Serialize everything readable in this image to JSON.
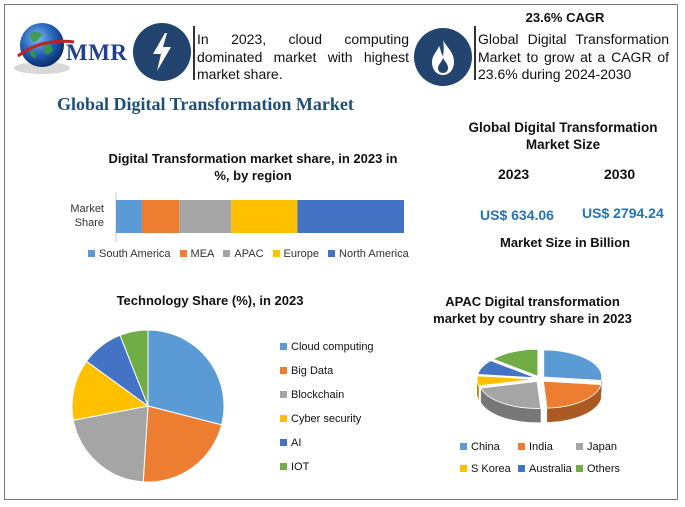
{
  "header": {
    "logo_text": "MMR",
    "intro_text": "In 2023, cloud computing dominated market with highest market share.",
    "cagr_title": "23.6% CAGR",
    "cagr_text": "Global Digital Transformation Market to grow at a CAGR of 23.6% during 2024-2030"
  },
  "main_title": "Global Digital Transformation Market",
  "market_size": {
    "title": "Global Digital Transformation Market Size",
    "year_1": "2023",
    "year_2": "2030",
    "value_1": "US$ 634.06",
    "value_2": "US$ 2794.24",
    "unit_label": "Market Size in Billion"
  },
  "colors": {
    "South America": "#5b9bd5",
    "MEA": "#ed7d31",
    "APAC": "#a5a5a5",
    "Europe": "#ffc000",
    "North America": "#4472c4",
    "Cloud computing": "#5b9bd5",
    "Big Data": "#ed7d31",
    "Blockchain": "#a5a5a5",
    "Cyber security": "#ffc000",
    "AI": "#4472c4",
    "IOT": "#70ad47",
    "China": "#5b9bd5",
    "India": "#ed7d31",
    "Japan": "#a5a5a5",
    "S Korea": "#ffc000",
    "Australia": "#4472c4",
    "Others": "#70ad47"
  },
  "chart_data": [
    {
      "type": "bar",
      "orientation": "horizontal-stacked",
      "title": "Digital Transformation market share, in 2023 in %, by region",
      "categories": [
        "Market Share"
      ],
      "category_label": "Market Share",
      "series": [
        {
          "name": "South America",
          "values": [
            9
          ]
        },
        {
          "name": "MEA",
          "values": [
            13
          ]
        },
        {
          "name": "APAC",
          "values": [
            18
          ]
        },
        {
          "name": "Europe",
          "values": [
            23
          ]
        },
        {
          "name": "North America",
          "values": [
            37
          ]
        }
      ],
      "xlim": [
        0,
        100
      ],
      "legend": "bottom"
    },
    {
      "type": "pie",
      "title": "Technology Share (%), in 2023",
      "labels": [
        "Cloud computing",
        "Big Data",
        "Blockchain",
        "Cyber security",
        "AI",
        "IOT"
      ],
      "values": [
        29,
        22,
        21,
        13,
        9,
        6
      ],
      "legend": "right"
    },
    {
      "type": "pie",
      "style": "3d-exploded",
      "title": "APAC Digital transformation market by country share in 2023",
      "labels": [
        "China",
        "India",
        "Japan",
        "S Korea",
        "Australia",
        "Others"
      ],
      "values": [
        27,
        22,
        22,
        6,
        9,
        14
      ],
      "legend": "bottom"
    }
  ]
}
